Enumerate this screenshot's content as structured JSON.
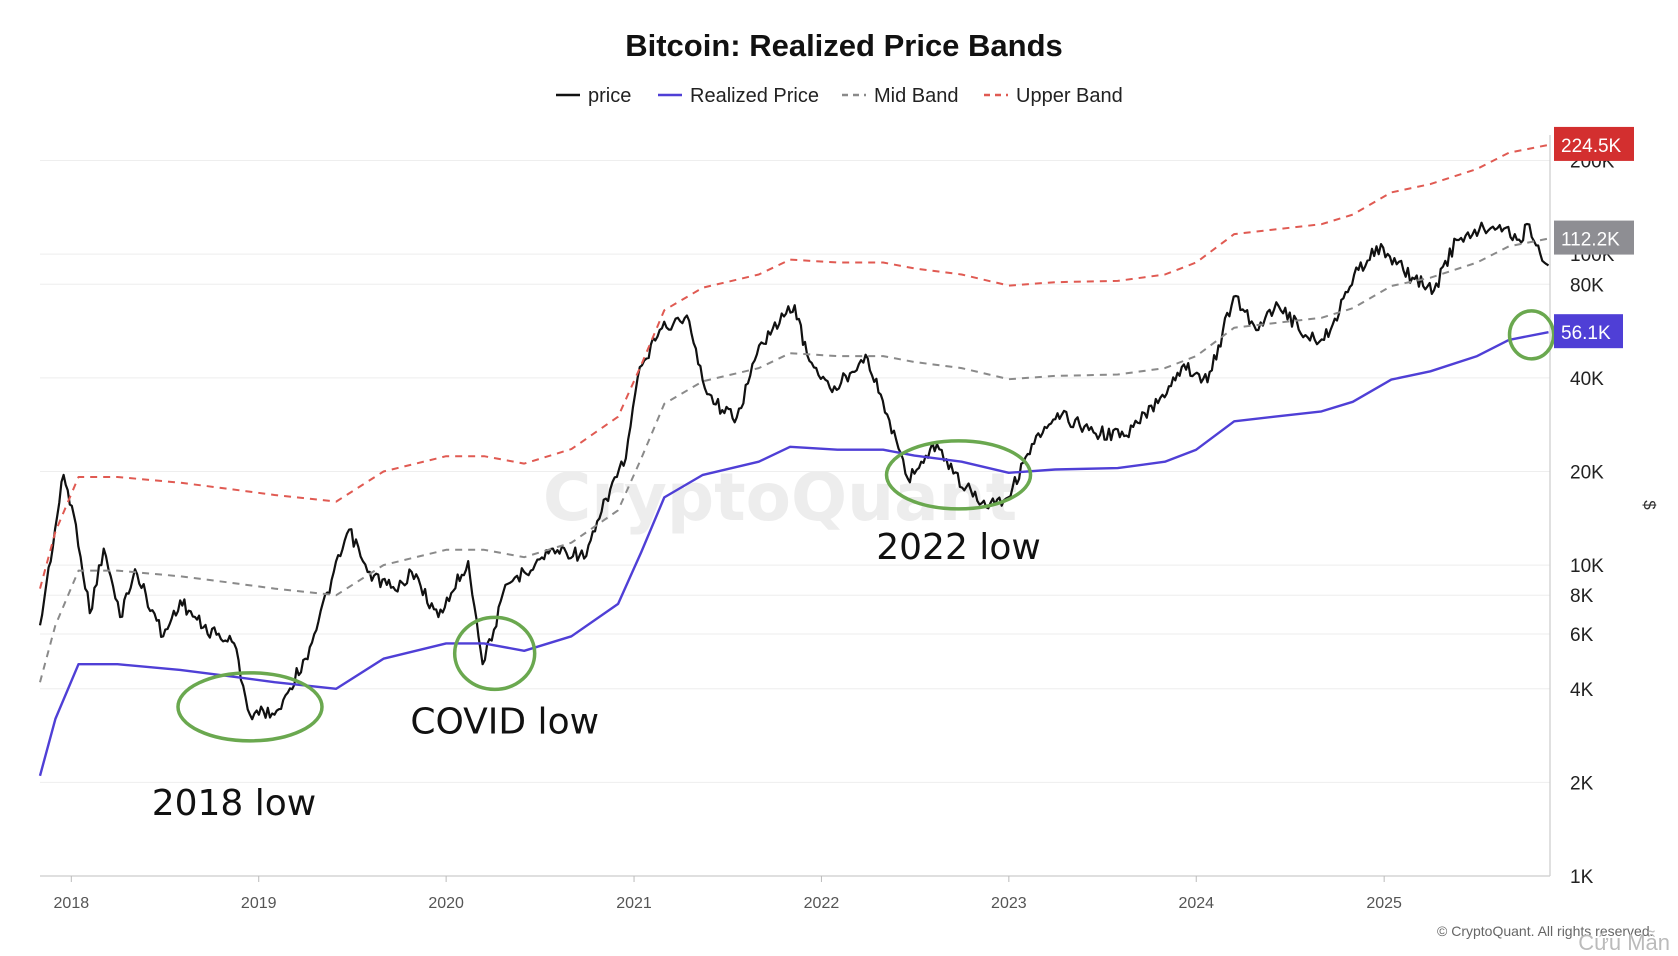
{
  "chart_data": {
    "type": "line",
    "title": "Bitcoin: Realized Price Bands",
    "y_scale": "log",
    "ylim": [
      1000,
      270000
    ],
    "xlim": [
      "2017-11-01",
      "2025-11-20"
    ],
    "y_unit": "$",
    "x_ticks": [
      "2018",
      "2019",
      "2020",
      "2021",
      "2022",
      "2023",
      "2024",
      "2025"
    ],
    "y_ticks": [
      {
        "value": 1000,
        "label": "1K"
      },
      {
        "value": 2000,
        "label": "2K"
      },
      {
        "value": 4000,
        "label": "4K"
      },
      {
        "value": 6000,
        "label": "6K"
      },
      {
        "value": 8000,
        "label": "8K"
      },
      {
        "value": 10000,
        "label": "10K"
      },
      {
        "value": 20000,
        "label": "20K"
      },
      {
        "value": 40000,
        "label": "40K"
      },
      {
        "value": 80000,
        "label": "80K"
      },
      {
        "value": 100000,
        "label": "100K"
      },
      {
        "value": 200000,
        "label": "200K"
      }
    ],
    "legend": [
      {
        "name": "price",
        "color": "#111111",
        "dash": "solid"
      },
      {
        "name": "Realized Price",
        "color": "#4f3fd6",
        "dash": "solid"
      },
      {
        "name": "Mid Band",
        "color": "#8a8a8a",
        "dash": "dashed"
      },
      {
        "name": "Upper Band",
        "color": "#e05a52",
        "dash": "dashed"
      }
    ],
    "legend_position": "top-center",
    "grid": true,
    "series": [
      {
        "name": "price",
        "x": [
          "2017-11-01",
          "2017-12-17",
          "2018-01-10",
          "2018-02-06",
          "2018-03-05",
          "2018-04-06",
          "2018-05-05",
          "2018-06-29",
          "2018-08-01",
          "2018-09-15",
          "2018-11-14",
          "2018-12-15",
          "2019-02-05",
          "2019-04-02",
          "2019-06-26",
          "2019-08-01",
          "2019-09-24",
          "2019-10-26",
          "2019-12-17",
          "2020-02-13",
          "2020-03-12",
          "2020-04-30",
          "2020-06-01",
          "2020-07-27",
          "2020-09-30",
          "2020-11-20",
          "2020-12-16",
          "2021-01-08",
          "2021-02-20",
          "2021-04-14",
          "2021-05-19",
          "2021-06-22",
          "2021-07-20",
          "2021-09-06",
          "2021-10-20",
          "2021-11-10",
          "2021-12-04",
          "2022-01-22",
          "2022-03-28",
          "2022-05-09",
          "2022-06-18",
          "2022-08-14",
          "2022-09-15",
          "2022-11-09",
          "2022-12-31",
          "2023-02-15",
          "2023-04-14",
          "2023-06-15",
          "2023-08-18",
          "2023-10-23",
          "2023-12-08",
          "2024-01-23",
          "2024-03-14",
          "2024-05-01",
          "2024-06-05",
          "2024-08-05",
          "2024-09-06",
          "2024-11-12",
          "2024-12-17",
          "2025-02-25",
          "2025-04-08",
          "2025-05-22",
          "2025-07-14",
          "2025-08-14",
          "2025-09-25",
          "2025-10-06",
          "2025-10-20",
          "2025-11-17"
        ],
        "values": [
          6400,
          19500,
          13500,
          7000,
          11300,
          6800,
          9700,
          5900,
          7700,
          6300,
          5600,
          3300,
          3400,
          5000,
          13000,
          9500,
          8300,
          9500,
          6800,
          10300,
          4800,
          8700,
          9500,
          11300,
          10700,
          18500,
          22000,
          40000,
          57000,
          63500,
          37000,
          31500,
          29800,
          52000,
          63000,
          68500,
          47500,
          36000,
          47500,
          30500,
          19000,
          24500,
          19700,
          15800,
          16500,
          24500,
          30400,
          26700,
          26100,
          34500,
          44200,
          38700,
          73000,
          57000,
          70000,
          54000,
          53000,
          89000,
          106000,
          84000,
          76500,
          111000,
          121000,
          124000,
          109000,
          125000,
          110000,
          92000
        ]
      },
      {
        "name": "Realized Price",
        "x": [
          "2017-11-01",
          "2017-12-01",
          "2018-01-15",
          "2018-04-01",
          "2018-08-01",
          "2018-11-01",
          "2019-02-01",
          "2019-06-01",
          "2019-09-01",
          "2020-01-01",
          "2020-03-15",
          "2020-06-01",
          "2020-09-01",
          "2020-12-01",
          "2021-01-15",
          "2021-03-01",
          "2021-05-15",
          "2021-09-01",
          "2021-11-01",
          "2022-02-01",
          "2022-05-01",
          "2022-07-01",
          "2022-10-01",
          "2023-01-01",
          "2023-04-01",
          "2023-08-01",
          "2023-11-01",
          "2024-01-01",
          "2024-03-15",
          "2024-06-01",
          "2024-09-01",
          "2024-11-01",
          "2025-01-15",
          "2025-04-01",
          "2025-07-01",
          "2025-09-01",
          "2025-11-17"
        ],
        "values": [
          2100,
          3200,
          4800,
          4800,
          4600,
          4400,
          4200,
          4000,
          5000,
          5600,
          5600,
          5300,
          5900,
          7500,
          11000,
          16500,
          19500,
          21500,
          24000,
          23500,
          23500,
          22500,
          21500,
          19800,
          20300,
          20500,
          21500,
          23500,
          29000,
          30000,
          31200,
          33500,
          39500,
          42000,
          47000,
          53000,
          56100
        ]
      },
      {
        "name": "Mid Band",
        "x": [
          "2017-11-01",
          "2017-12-01",
          "2018-01-15",
          "2018-04-01",
          "2018-08-01",
          "2018-11-01",
          "2019-02-01",
          "2019-06-01",
          "2019-09-01",
          "2020-01-01",
          "2020-03-15",
          "2020-06-01",
          "2020-09-01",
          "2020-12-01",
          "2021-01-15",
          "2021-03-01",
          "2021-05-15",
          "2021-09-01",
          "2021-11-01",
          "2022-02-01",
          "2022-05-01",
          "2022-07-01",
          "2022-10-01",
          "2023-01-01",
          "2023-04-01",
          "2023-08-01",
          "2023-11-01",
          "2024-01-01",
          "2024-03-15",
          "2024-06-01",
          "2024-09-01",
          "2024-11-01",
          "2025-01-15",
          "2025-04-01",
          "2025-07-01",
          "2025-09-01",
          "2025-11-17"
        ],
        "values": [
          4200,
          6400,
          9600,
          9600,
          9200,
          8800,
          8400,
          8000,
          10000,
          11200,
          11200,
          10600,
          11800,
          15000,
          22000,
          33000,
          39000,
          43000,
          48000,
          47000,
          47000,
          45000,
          43000,
          39600,
          40600,
          41000,
          43000,
          47000,
          58000,
          60000,
          62400,
          67000,
          79000,
          84000,
          94000,
          106000,
          112200
        ]
      },
      {
        "name": "Upper Band",
        "x": [
          "2017-11-01",
          "2017-12-01",
          "2018-01-15",
          "2018-04-01",
          "2018-08-01",
          "2018-11-01",
          "2019-02-01",
          "2019-06-01",
          "2019-09-01",
          "2020-01-01",
          "2020-03-15",
          "2020-06-01",
          "2020-09-01",
          "2020-12-01",
          "2021-01-15",
          "2021-03-01",
          "2021-05-15",
          "2021-09-01",
          "2021-11-01",
          "2022-02-01",
          "2022-05-01",
          "2022-07-01",
          "2022-10-01",
          "2023-01-01",
          "2023-04-01",
          "2023-08-01",
          "2023-11-01",
          "2024-01-01",
          "2024-03-15",
          "2024-06-01",
          "2024-09-01",
          "2024-11-01",
          "2025-01-15",
          "2025-04-01",
          "2025-07-01",
          "2025-09-01",
          "2025-11-17"
        ],
        "values": [
          8400,
          12800,
          19200,
          19200,
          18400,
          17600,
          16800,
          16000,
          20000,
          22400,
          22400,
          21200,
          23600,
          30000,
          44000,
          66000,
          78000,
          86000,
          96000,
          94000,
          94000,
          90000,
          86000,
          79200,
          81200,
          82000,
          86000,
          94000,
          116000,
          120000,
          124800,
          134000,
          158000,
          168000,
          188000,
          212000,
          224500
        ]
      }
    ],
    "last_values": [
      {
        "series": "Upper Band",
        "label": "224.5K",
        "value": 224500,
        "color": "#d32f2f"
      },
      {
        "series": "Mid Band",
        "label": "112.2K",
        "value": 112200,
        "color": "#8e8e93"
      },
      {
        "series": "Realized Price",
        "label": "56.1K",
        "value": 56100,
        "color": "#4f3fd6"
      }
    ],
    "annotations": [
      {
        "label": "2018 low",
        "date": "2018-12-15",
        "value": 3500
      },
      {
        "label": "COVID low",
        "date": "2020-03-20",
        "value": 5200
      },
      {
        "label": "2022 low",
        "date": "2022-09-25",
        "value": 19500
      },
      {
        "label": "",
        "date": "2025-10-15",
        "value": 55000
      }
    ]
  },
  "watermark": "CryptoQuant",
  "footer": "© CryptoQuant. All rights reserved.",
  "corner_mark": "Cứu Mẫn",
  "colors": {
    "price": "#111111",
    "realized": "#4f3fd6",
    "mid": "#8a8a8a",
    "upper": "#e05a52",
    "highlight": "#6aa84f",
    "grid": "#eeeeee"
  }
}
